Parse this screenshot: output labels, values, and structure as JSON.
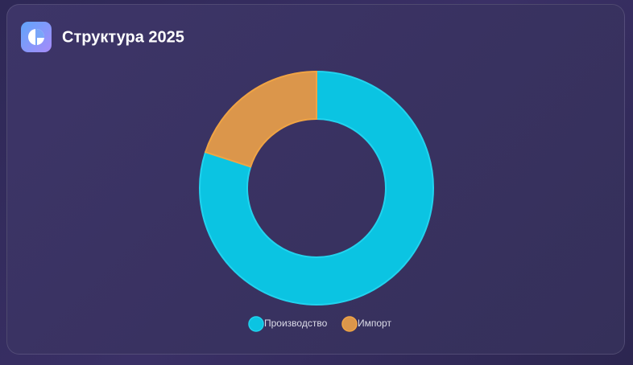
{
  "chart_data": {
    "type": "pie",
    "title": "Структура 2025",
    "categories": [
      "Производство",
      "Импорт"
    ],
    "values": [
      80,
      20
    ],
    "colors": [
      "#0bc4e2",
      "#db964b"
    ],
    "stroke_colors": [
      "#22d3ee",
      "#f0a444"
    ],
    "donut": true,
    "legend": "bottom"
  }
}
